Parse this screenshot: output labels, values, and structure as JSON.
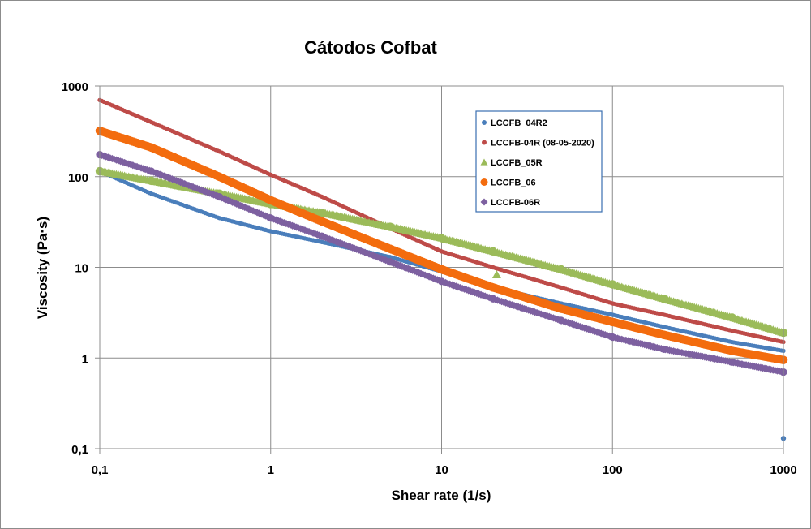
{
  "chart_data": {
    "type": "scatter",
    "title": "Cátodos Cofbat",
    "xlabel": "Shear rate (1/s)",
    "ylabel": "Viscosity (Pa·s)",
    "xscale": "log",
    "yscale": "log",
    "xlim": [
      0.1,
      1000
    ],
    "ylim": [
      0.1,
      1000
    ],
    "xticks": [
      {
        "value": 0.1,
        "label": "0,1"
      },
      {
        "value": 1,
        "label": "1"
      },
      {
        "value": 10,
        "label": "10"
      },
      {
        "value": 100,
        "label": "100"
      },
      {
        "value": 1000,
        "label": "1000"
      }
    ],
    "yticks": [
      {
        "value": 0.1,
        "label": "0,1"
      },
      {
        "value": 1,
        "label": "1"
      },
      {
        "value": 10,
        "label": "10"
      },
      {
        "value": 100,
        "label": "100"
      },
      {
        "value": 1000,
        "label": "1000"
      }
    ],
    "grid": true,
    "legend_position": "top-right",
    "series": [
      {
        "name": "LCCFB_04R2",
        "color": "#4a7ebb",
        "marker": "circle",
        "x": [
          0.1,
          0.2,
          0.5,
          1,
          2,
          5,
          10,
          20,
          50,
          100,
          200,
          500,
          1000
        ],
        "y": [
          115,
          65,
          35,
          25,
          19,
          13,
          9,
          6,
          4,
          3,
          2.2,
          1.5,
          1.2
        ],
        "outliers": [
          {
            "x": 1000,
            "y": 0.13
          }
        ]
      },
      {
        "name": "LCCFB-04R (08-05-2020)",
        "color": "#be4b48",
        "marker": "circle",
        "x": [
          0.1,
          0.2,
          0.5,
          1,
          2,
          5,
          10,
          20,
          50,
          100,
          200,
          500,
          1000
        ],
        "y": [
          700,
          400,
          190,
          105,
          60,
          27,
          15,
          10,
          6,
          4,
          3,
          2,
          1.5
        ]
      },
      {
        "name": "LCCFB_05R",
        "color": "#9bbb59",
        "marker": "triangle",
        "x": [
          0.1,
          0.2,
          0.5,
          1,
          2,
          5,
          10,
          20,
          50,
          100,
          200,
          500,
          1000
        ],
        "y": [
          115,
          90,
          65,
          50,
          40,
          28,
          21,
          15,
          9.5,
          6.5,
          4.5,
          2.8,
          1.9
        ],
        "outliers": [
          {
            "x": 21,
            "y": 8.3
          }
        ]
      },
      {
        "name": "LCCFB_06",
        "color": "#f36c0e",
        "marker": "circle",
        "x": [
          0.1,
          0.2,
          0.5,
          1,
          2,
          5,
          10,
          20,
          50,
          100,
          200,
          500,
          1000
        ],
        "y": [
          320,
          210,
          100,
          55,
          32,
          16,
          9.5,
          6,
          3.5,
          2.5,
          1.8,
          1.2,
          0.95
        ]
      },
      {
        "name": "LCCFB-06R",
        "color": "#7d60a0",
        "marker": "diamond",
        "x": [
          0.1,
          0.2,
          0.5,
          1,
          2,
          5,
          10,
          20,
          50,
          100,
          200,
          500,
          1000
        ],
        "y": [
          175,
          115,
          60,
          35,
          22,
          11.5,
          7,
          4.5,
          2.6,
          1.7,
          1.25,
          0.9,
          0.7
        ]
      }
    ]
  }
}
